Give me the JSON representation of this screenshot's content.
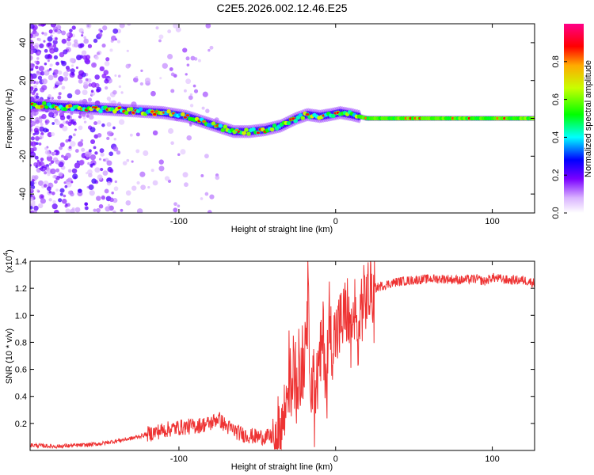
{
  "title": "C2E5.2026.002.12.46.E25",
  "chart_data": [
    {
      "type": "heatmap",
      "title": "C2E5.2026.002.12.46.E25",
      "xlabel": "Height of straight line (km)",
      "ylabel": "Frequency (Hz)",
      "xlim": [
        -195,
        127
      ],
      "ylim": [
        -50,
        50
      ],
      "x_ticks": [
        -100,
        0,
        100
      ],
      "x_tick_labels": [
        "-100",
        "0",
        "100"
      ],
      "y_ticks": [
        -40,
        -20,
        0,
        20,
        40
      ],
      "y_tick_labels": [
        "-40",
        "-20",
        "0",
        "20",
        "40"
      ],
      "colorbar": {
        "label": "Normalized spectral amplitude",
        "range": [
          0,
          1
        ],
        "ticks": [
          0.0,
          0.2,
          0.4,
          0.6,
          0.8
        ],
        "tick_labels": [
          "0.0",
          "0.2",
          "0.4",
          "0.6",
          "0.8"
        ]
      },
      "ridge": {
        "x": [
          -190,
          -170,
          -150,
          -130,
          -110,
          -95,
          -80,
          -65,
          -55,
          -45,
          -35,
          -25,
          -18,
          -10,
          -3,
          3,
          10,
          20,
          60,
          127
        ],
        "y": [
          7,
          6,
          5,
          4,
          3,
          1,
          -3,
          -7,
          -7,
          -6,
          -4,
          0,
          2,
          1,
          2,
          3,
          2,
          0,
          0,
          0
        ]
      }
    },
    {
      "type": "line",
      "xlabel": "Height of straight line (km)",
      "ylabel": "SNR (10 * v/v)",
      "y_multiplier": "(x10",
      "y_multiplier_exp": "4",
      "xlim": [
        -195,
        127
      ],
      "ylim": [
        0,
        1.4
      ],
      "x_ticks": [
        -100,
        0,
        100
      ],
      "x_tick_labels": [
        "-100",
        "0",
        "100"
      ],
      "y_ticks": [
        0.2,
        0.4,
        0.6,
        0.8,
        1.0,
        1.2,
        1.4
      ],
      "y_tick_labels": [
        "0.2",
        "0.4",
        "0.6",
        "0.8",
        "1.0",
        "1.2",
        "1.4"
      ],
      "series": [
        {
          "name": "SNR",
          "color": "#ee3333",
          "x": [
            -195,
            -180,
            -160,
            -150,
            -140,
            -130,
            -120,
            -110,
            -100,
            -90,
            -80,
            -75,
            -70,
            -60,
            -50,
            -40,
            -35,
            -32,
            -30,
            -28,
            -25,
            -22,
            -20,
            -18,
            -16,
            -14,
            -12,
            -10,
            -8,
            -6,
            -4,
            -2,
            0,
            2,
            4,
            6,
            8,
            10,
            12,
            14,
            16,
            18,
            20,
            25,
            30,
            40,
            50,
            60,
            70,
            80,
            90,
            95,
            100,
            110,
            120,
            127
          ],
          "y": [
            0.04,
            0.03,
            0.04,
            0.05,
            0.07,
            0.09,
            0.12,
            0.15,
            0.17,
            0.18,
            0.2,
            0.24,
            0.18,
            0.12,
            0.1,
            0.1,
            0.15,
            0.3,
            0.55,
            0.45,
            0.6,
            0.5,
            0.7,
            1.15,
            0.6,
            0.4,
            0.5,
            0.65,
            0.85,
            0.55,
            0.9,
            0.8,
            0.85,
            0.9,
            0.95,
            1.0,
            1.05,
            0.7,
            1.1,
            0.75,
            1.05,
            1.1,
            1.15,
            1.2,
            1.22,
            1.25,
            1.26,
            1.27,
            1.27,
            1.26,
            1.27,
            1.25,
            1.28,
            1.26,
            1.26,
            1.24
          ]
        }
      ]
    }
  ]
}
